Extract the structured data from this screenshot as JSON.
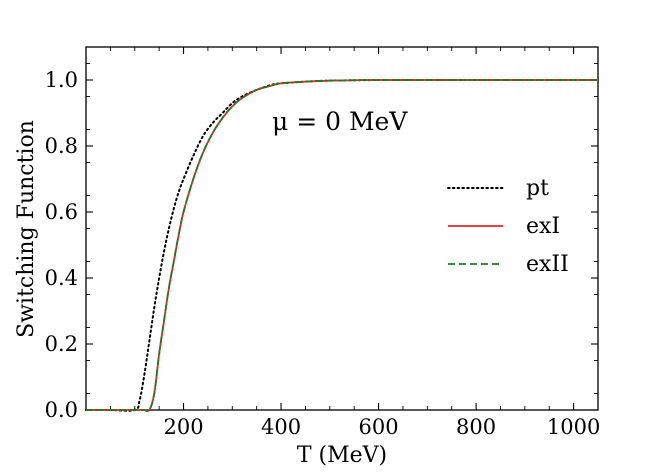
{
  "chart_data": {
    "type": "line",
    "title": "",
    "xlabel": "T (MeV)",
    "ylabel": "Switching Function",
    "xlim": [
      0,
      1050
    ],
    "ylim": [
      0,
      1.1
    ],
    "xticks": [
      200,
      400,
      600,
      800,
      1000
    ],
    "xtick_labels": [
      "200",
      "400",
      "600",
      "800",
      "1000"
    ],
    "yticks": [
      0.0,
      0.2,
      0.4,
      0.6,
      0.8,
      1.0
    ],
    "ytick_labels": [
      "0.0",
      "0.2",
      "0.4",
      "0.6",
      "0.8",
      "1.0"
    ],
    "grid": false,
    "legend_position": "center-right",
    "annotation": "μ = 0 MeV",
    "x": [
      0,
      50,
      100,
      110,
      120,
      130,
      140,
      150,
      160,
      170,
      180,
      190,
      200,
      220,
      240,
      260,
      280,
      300,
      320,
      350,
      380,
      400,
      450,
      500,
      600,
      700,
      800,
      900,
      1050
    ],
    "series": [
      {
        "name": "pt",
        "color": "#000000",
        "style": "dotted",
        "values": [
          0,
          0,
          0.0,
          0.03,
          0.11,
          0.21,
          0.31,
          0.4,
          0.48,
          0.55,
          0.61,
          0.66,
          0.7,
          0.77,
          0.83,
          0.87,
          0.9,
          0.93,
          0.95,
          0.97,
          0.985,
          0.99,
          0.995,
          0.998,
          1.0,
          1.0,
          1.0,
          1.0,
          1.0
        ]
      },
      {
        "name": "exI",
        "color": "#e8242a",
        "style": "solid",
        "values": [
          0,
          0,
          0,
          0,
          0,
          0.0,
          0.05,
          0.17,
          0.27,
          0.37,
          0.45,
          0.53,
          0.6,
          0.7,
          0.78,
          0.84,
          0.885,
          0.92,
          0.945,
          0.97,
          0.983,
          0.99,
          0.995,
          0.998,
          1.0,
          1.0,
          1.0,
          1.0,
          1.0
        ]
      },
      {
        "name": "exII",
        "color": "#1a7f1a",
        "style": "dashed",
        "values": [
          0,
          0,
          0,
          0,
          0,
          0.0,
          0.05,
          0.17,
          0.27,
          0.37,
          0.45,
          0.53,
          0.6,
          0.7,
          0.78,
          0.84,
          0.885,
          0.92,
          0.945,
          0.97,
          0.983,
          0.99,
          0.995,
          0.998,
          1.0,
          1.0,
          1.0,
          1.0,
          1.0
        ]
      }
    ]
  }
}
